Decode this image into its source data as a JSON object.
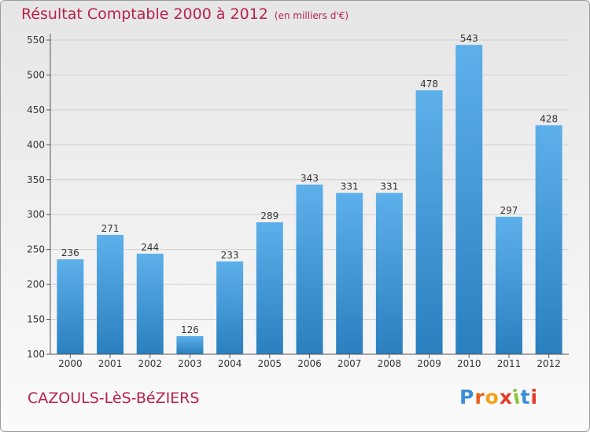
{
  "chart_data": {
    "type": "bar",
    "title": "Résultat Comptable 2000 à 2012",
    "unit_note": "(en milliers d'€)",
    "categories": [
      "2000",
      "2001",
      "2002",
      "2003",
      "2004",
      "2005",
      "2006",
      "2007",
      "2008",
      "2009",
      "2010",
      "2011",
      "2012"
    ],
    "values": [
      236,
      271,
      244,
      126,
      233,
      289,
      343,
      331,
      331,
      478,
      543,
      297,
      428
    ],
    "ylim": [
      100,
      550
    ],
    "yticks": [
      100,
      150,
      200,
      250,
      300,
      350,
      400,
      450,
      500,
      550
    ],
    "grid": true,
    "xlabel": "",
    "ylabel": ""
  },
  "commune": "CAZOULS-LèS-BéZIERS",
  "logo": {
    "text": "Proxiti",
    "letter_colors": [
      "#3b8fd6",
      "#e8601c",
      "#f2a21b",
      "#e33b2a",
      "#8cc43f",
      "#3b8fd6",
      "#e33b2a"
    ]
  },
  "colors": {
    "bar_light": "#5db0ea",
    "bar_dark": "#2a7fbf",
    "title": "#b8224a",
    "grid": "#cfcfcf"
  }
}
